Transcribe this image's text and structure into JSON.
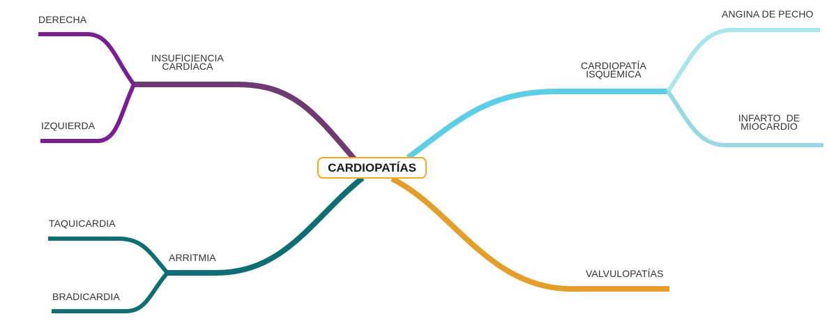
{
  "root": {
    "label": "CARDIOPATÍAS",
    "border_color": "#f0a81c"
  },
  "branches": {
    "insuficiencia": {
      "label": "INSUFICIENCIA\nCARDÍACA",
      "color": "#6e3a72",
      "children": [
        {
          "label": "DERECHA",
          "color": "#7a1f91"
        },
        {
          "label": "IZQUIERDA",
          "color": "#7a1f91"
        }
      ]
    },
    "arritmia": {
      "label": "ARRITMIA",
      "color": "#0e6e73",
      "children": [
        {
          "label": "TAQUICARDIA",
          "color": "#0e6e73"
        },
        {
          "label": "BRADICARDIA",
          "color": "#0e6e73"
        }
      ]
    },
    "isquemica": {
      "label": "CARDIOPATÍA\nISQUÉMICA",
      "color": "#5ccfe6",
      "children": [
        {
          "label": "ANGINA DE PECHO",
          "color": "#a9e6ec"
        },
        {
          "label": "INFARTO  DE\nMIOCARDIO",
          "color": "#96d9e2"
        }
      ]
    },
    "valvulopatias": {
      "label": "VALVULOPATÍAS",
      "color": "#e39f2a",
      "children": []
    }
  }
}
